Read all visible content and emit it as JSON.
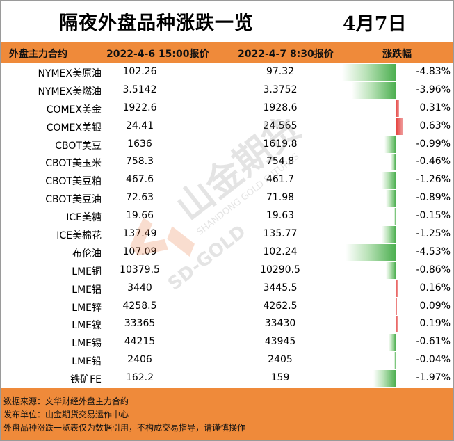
{
  "title": "隔夜外盘品种涨跌一览",
  "date": "4月7日",
  "headers": {
    "name": "外盘主力合约",
    "price1": "2022-4-6 15:00报价",
    "price2": "2022-4-7 8:30报价",
    "change": "涨跌幅"
  },
  "colors": {
    "header_bg": "#ef8a3a",
    "up": "#e53935",
    "down": "#4caf50"
  },
  "rows": [
    {
      "name": "NYMEX美原油",
      "p1": "102.26",
      "p2": "97.32",
      "pct": "-4.83%",
      "value": -4.83
    },
    {
      "name": "NYMEX美燃油",
      "p1": "3.5142",
      "p2": "3.3752",
      "pct": "-3.96%",
      "value": -3.96
    },
    {
      "name": "COMEX美金",
      "p1": "1922.6",
      "p2": "1928.6",
      "pct": "0.31%",
      "value": 0.31
    },
    {
      "name": "COMEX美银",
      "p1": "24.41",
      "p2": "24.565",
      "pct": "0.63%",
      "value": 0.63
    },
    {
      "name": "CBOT美豆",
      "p1": "1636",
      "p2": "1619.8",
      "pct": "-0.99%",
      "value": -0.99
    },
    {
      "name": "CBOT美玉米",
      "p1": "758.3",
      "p2": "754.8",
      "pct": "-0.46%",
      "value": -0.46
    },
    {
      "name": "CBOT美豆粕",
      "p1": "467.6",
      "p2": "461.7",
      "pct": "-1.26%",
      "value": -1.26
    },
    {
      "name": "CBOT美豆油",
      "p1": "72.63",
      "p2": "71.98",
      "pct": "-0.89%",
      "value": -0.89
    },
    {
      "name": "ICE美糖",
      "p1": "19.66",
      "p2": "19.63",
      "pct": "-0.15%",
      "value": -0.15
    },
    {
      "name": "ICE美棉花",
      "p1": "137.49",
      "p2": "135.77",
      "pct": "-1.25%",
      "value": -1.25
    },
    {
      "name": "布伦油",
      "p1": "107.09",
      "p2": "102.24",
      "pct": "-4.53%",
      "value": -4.53
    },
    {
      "name": "LME铜",
      "p1": "10379.5",
      "p2": "10290.5",
      "pct": "-0.86%",
      "value": -0.86
    },
    {
      "name": "LME铝",
      "p1": "3440",
      "p2": "3445.5",
      "pct": "0.16%",
      "value": 0.16
    },
    {
      "name": "LME锌",
      "p1": "4258.5",
      "p2": "4262.5",
      "pct": "0.09%",
      "value": 0.09
    },
    {
      "name": "LME镍",
      "p1": "33365",
      "p2": "33430",
      "pct": "0.19%",
      "value": 0.19
    },
    {
      "name": "LME锡",
      "p1": "44215",
      "p2": "43945",
      "pct": "-0.61%",
      "value": -0.61
    },
    {
      "name": "LME铅",
      "p1": "2406",
      "p2": "2405",
      "pct": "-0.04%",
      "value": -0.04
    },
    {
      "name": "铁矿FE",
      "p1": "162.2",
      "p2": "159",
      "pct": "-1.97%",
      "value": -1.97
    }
  ],
  "footer": {
    "line1": "数据来源：文华财经外盘主力合约",
    "line2": "发布单位：山金期货交易运作中心",
    "line3": "外盘品种涨跌一览表仅为数据引用，不构成交易指导，请谨慎操作"
  },
  "watermark": {
    "brand": "山金期货",
    "brand_en": "SD-GOLD",
    "brand_sub": "SHANDONG GOLD FUTURES"
  }
}
